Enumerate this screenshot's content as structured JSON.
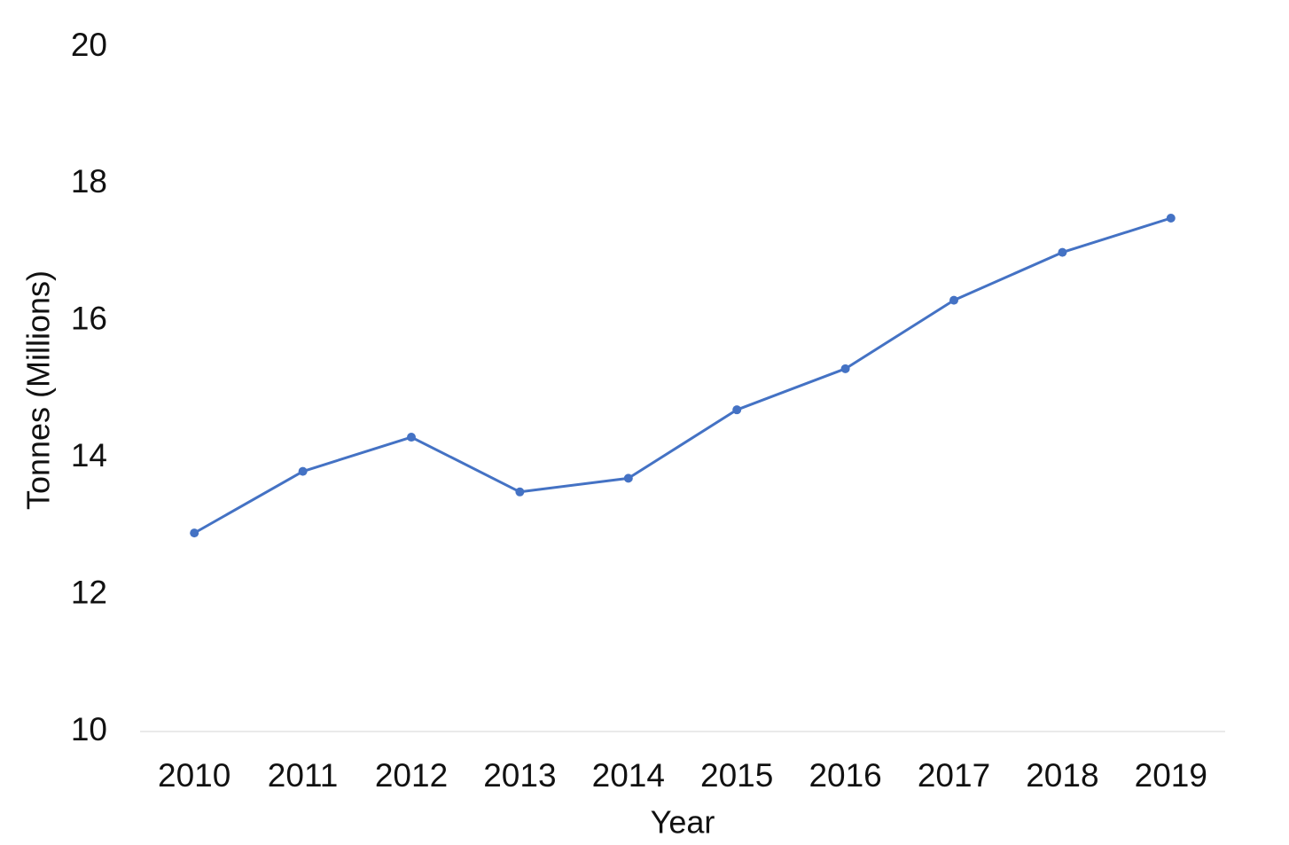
{
  "chart_data": {
    "type": "line",
    "x_label": "Year",
    "y_label": "Tonnes (Millions)",
    "categories": [
      "2010",
      "2011",
      "2012",
      "2013",
      "2014",
      "2015",
      "2016",
      "2017",
      "2018",
      "2019"
    ],
    "values": [
      12.9,
      13.8,
      14.3,
      13.5,
      13.7,
      14.7,
      15.3,
      16.3,
      17.0,
      17.5
    ],
    "color": "#4472c4",
    "ylim": [
      10,
      20
    ],
    "yticks": [
      10,
      12,
      14,
      16,
      18,
      20
    ],
    "grid": false
  }
}
